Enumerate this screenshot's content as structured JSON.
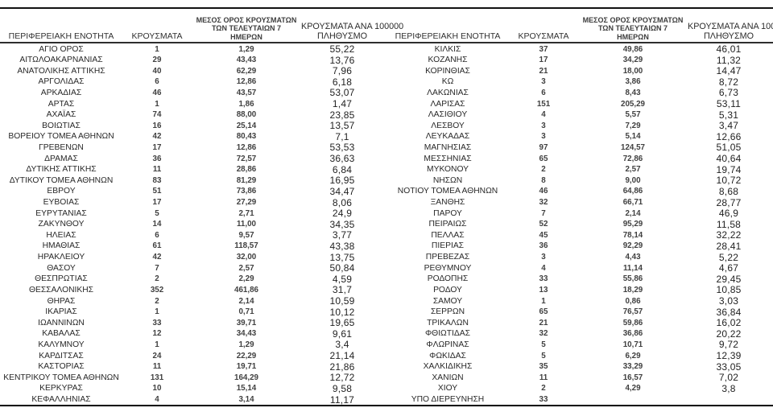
{
  "document": {
    "kind": "regional-covid-cases-table",
    "language": "el"
  },
  "header": {
    "col1": "ΠΕΡΙΦΕΡΕΙΑΚΗ ΕΝΟΤΗΤΑ",
    "col2": "ΚΡΟΥΣΜΑΤΑ",
    "col3_lines": [
      "ΜΕΣΟΣ ΟΡΟΣ ΚΡΟΥΣΜΑΤΩΝ",
      "ΤΩΝ ΤΕΛΕΥΤΑΙΩΝ 7",
      "ΗΜΕΡΩΝ"
    ],
    "col4_lines": [
      "ΚΡΟΥΣΜΑΤΑ ΑΝΑ 100000",
      "ΠΛΗΘΥΣΜΟ"
    ]
  },
  "colors": {
    "rule": "#000000",
    "header_rule": "#2e2e2e",
    "text": "#262626"
  },
  "tables": [
    {
      "rows": [
        [
          "ΑΓΙΟ ΟΡΟΣ",
          "1",
          "1,29",
          "55,22"
        ],
        [
          "ΑΙΤΩΛΟΑΚΑΡΝΑΝΙΑΣ",
          "29",
          "43,43",
          "13,76"
        ],
        [
          "ΑΝΑΤΟΛΙΚΗΣ ΑΤΤΙΚΗΣ",
          "40",
          "62,29",
          "7,96"
        ],
        [
          "ΑΡΓΟΛΙΔΑΣ",
          "6",
          "12,86",
          "6,18"
        ],
        [
          "ΑΡΚΑΔΙΑΣ",
          "46",
          "43,57",
          "53,07"
        ],
        [
          "ΑΡΤΑΣ",
          "1",
          "1,86",
          "1,47"
        ],
        [
          "ΑΧΑΪΑΣ",
          "74",
          "88,00",
          "23,85"
        ],
        [
          "ΒΟΙΩΤΙΑΣ",
          "16",
          "25,14",
          "13,57"
        ],
        [
          "ΒΟΡΕΙΟΥ ΤΟΜΕΑ ΑΘΗΝΩΝ",
          "42",
          "80,43",
          "7,1"
        ],
        [
          "ΓΡΕΒΕΝΩΝ",
          "17",
          "12,86",
          "53,53"
        ],
        [
          "ΔΡΑΜΑΣ",
          "36",
          "72,57",
          "36,63"
        ],
        [
          "ΔΥΤΙΚΗΣ ΑΤΤΙΚΗΣ",
          "11",
          "28,86",
          "6,84"
        ],
        [
          "ΔΥΤΙΚΟΥ ΤΟΜΕΑ ΑΘΗΝΩΝ",
          "83",
          "81,29",
          "16,95"
        ],
        [
          "ΕΒΡΟΥ",
          "51",
          "73,86",
          "34,47"
        ],
        [
          "ΕΥΒΟΙΑΣ",
          "17",
          "27,29",
          "8,06"
        ],
        [
          "ΕΥΡΥΤΑΝΙΑΣ",
          "5",
          "2,71",
          "24,9"
        ],
        [
          "ΖΑΚΥΝΘΟΥ",
          "14",
          "11,00",
          "34,35"
        ],
        [
          "ΗΛΕΙΑΣ",
          "6",
          "9,57",
          "3,77"
        ],
        [
          "ΗΜΑΘΙΑΣ",
          "61",
          "118,57",
          "43,38"
        ],
        [
          "ΗΡΑΚΛΕΙΟΥ",
          "42",
          "32,00",
          "13,75"
        ],
        [
          "ΘΑΣΟΥ",
          "7",
          "2,57",
          "50,84"
        ],
        [
          "ΘΕΣΠΡΩΤΙΑΣ",
          "2",
          "2,29",
          "4,59"
        ],
        [
          "ΘΕΣΣΑΛΟΝΙΚΗΣ",
          "352",
          "461,86",
          "31,7"
        ],
        [
          "ΘΗΡΑΣ",
          "2",
          "2,14",
          "10,59"
        ],
        [
          "ΙΚΑΡΙΑΣ",
          "1",
          "0,71",
          "10,12"
        ],
        [
          "ΙΩΑΝΝΙΝΩΝ",
          "33",
          "39,71",
          "19,65"
        ],
        [
          "ΚΑΒΑΛΑΣ",
          "12",
          "34,43",
          "9,61"
        ],
        [
          "ΚΑΛΥΜΝΟΥ",
          "1",
          "1,29",
          "3,4"
        ],
        [
          "ΚΑΡΔΙΤΣΑΣ",
          "24",
          "22,29",
          "21,14"
        ],
        [
          "ΚΑΣΤΟΡΙΑΣ",
          "11",
          "19,71",
          "21,86"
        ],
        [
          "ΚΕΝΤΡΙΚΟΥ ΤΟΜΕΑ ΑΘΗΝΩΝ",
          "131",
          "164,29",
          "12,72"
        ],
        [
          "ΚΕΡΚΥΡΑΣ",
          "10",
          "15,14",
          "9,58"
        ],
        [
          "ΚΕΦΑΛΛΗΝΙΑΣ",
          "4",
          "3,14",
          "11,17"
        ]
      ]
    },
    {
      "rows": [
        [
          "ΚΙΛΚΙΣ",
          "37",
          "49,86",
          "46,01"
        ],
        [
          "ΚΟΖΑΝΗΣ",
          "17",
          "34,29",
          "11,32"
        ],
        [
          "ΚΟΡΙΝΘΙΑΣ",
          "21",
          "18,00",
          "14,47"
        ],
        [
          "ΚΩ",
          "3",
          "3,86",
          "8,72"
        ],
        [
          "ΛΑΚΩΝΙΑΣ",
          "6",
          "8,43",
          "6,73"
        ],
        [
          "ΛΑΡΙΣΑΣ",
          "151",
          "205,29",
          "53,11"
        ],
        [
          "ΛΑΣΙΘΙΟΥ",
          "4",
          "5,57",
          "5,31"
        ],
        [
          "ΛΕΣΒΟΥ",
          "3",
          "7,29",
          "3,47"
        ],
        [
          "ΛΕΥΚΑΔΑΣ",
          "3",
          "5,14",
          "12,66"
        ],
        [
          "ΜΑΓΝΗΣΙΑΣ",
          "97",
          "124,57",
          "51,05"
        ],
        [
          "ΜΕΣΣΗΝΙΑΣ",
          "65",
          "72,86",
          "40,64"
        ],
        [
          "ΜΥΚΟΝΟΥ",
          "2",
          "2,57",
          "19,74"
        ],
        [
          "ΝΗΣΩΝ",
          "8",
          "9,00",
          "10,72"
        ],
        [
          "ΝΟΤΙΟΥ ΤΟΜΕΑ ΑΘΗΝΩΝ",
          "46",
          "64,86",
          "8,68"
        ],
        [
          "ΞΑΝΘΗΣ",
          "32",
          "66,71",
          "28,77"
        ],
        [
          "ΠΑΡΟΥ",
          "7",
          "2,14",
          "46,9"
        ],
        [
          "ΠΕΙΡΑΙΩΣ",
          "52",
          "95,29",
          "11,58"
        ],
        [
          "ΠΕΛΛΑΣ",
          "45",
          "78,14",
          "32,22"
        ],
        [
          "ΠΙΕΡΙΑΣ",
          "36",
          "92,29",
          "28,41"
        ],
        [
          "ΠΡΕΒΕΖΑΣ",
          "3",
          "4,43",
          "5,22"
        ],
        [
          "ΡΕΘΥΜΝΟΥ",
          "4",
          "11,14",
          "4,67"
        ],
        [
          "ΡΟΔΟΠΗΣ",
          "33",
          "55,86",
          "29,45"
        ],
        [
          "ΡΟΔΟΥ",
          "13",
          "18,29",
          "10,85"
        ],
        [
          "ΣΑΜΟΥ",
          "1",
          "0,86",
          "3,03"
        ],
        [
          "ΣΕΡΡΩΝ",
          "65",
          "76,57",
          "36,84"
        ],
        [
          "ΤΡΙΚΑΛΩΝ",
          "21",
          "59,86",
          "16,02"
        ],
        [
          "ΦΘΙΩΤΙΔΑΣ",
          "32",
          "36,86",
          "20,22"
        ],
        [
          "ΦΛΩΡΙΝΑΣ",
          "5",
          "10,71",
          "9,72"
        ],
        [
          "ΦΩΚΙΔΑΣ",
          "5",
          "6,29",
          "12,39"
        ],
        [
          "ΧΑΛΚΙΔΙΚΗΣ",
          "35",
          "33,29",
          "33,05"
        ],
        [
          "ΧΑΝΙΩΝ",
          "11",
          "16,57",
          "7,02"
        ],
        [
          "ΧΙΟΥ",
          "2",
          "4,29",
          "3,8"
        ],
        [
          "ΥΠΟ ΔΙΕΡΕΥΝΗΣΗ",
          "33",
          "",
          ""
        ]
      ]
    }
  ]
}
